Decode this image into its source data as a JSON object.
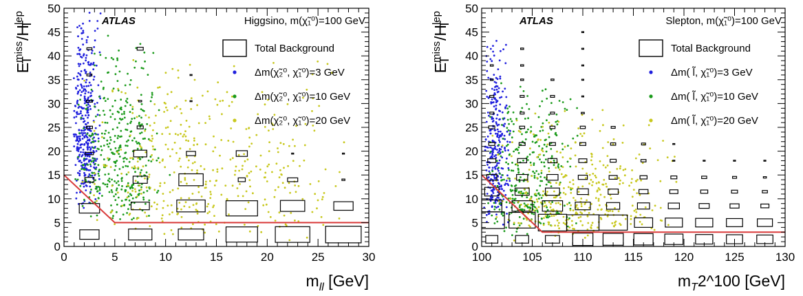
{
  "chart_data": [
    {
      "type": "scatter",
      "experiment_label": "ATLAS",
      "annotation": "Higgsino, m(χ̃₁⁰)=100 GeV",
      "xlabel": "m_ll [GeV]",
      "ylabel": "E_T^miss/H_T^lep",
      "xlim": [
        0,
        30
      ],
      "ylim": [
        0,
        50
      ],
      "x_ticks": [
        0,
        5,
        10,
        15,
        20,
        25,
        30
      ],
      "y_ticks": [
        0,
        5,
        10,
        15,
        20,
        25,
        30,
        35,
        40,
        45,
        50
      ],
      "grid": false,
      "legend_position": "top-right",
      "legend": [
        {
          "label": "Total Background",
          "kind": "box"
        },
        {
          "label": "Δm(χ̃₂⁰, χ̃₁⁰)=3 GeV",
          "kind": "marker",
          "color": "#1f1fdd"
        },
        {
          "label": "Δm(χ̃₂⁰, χ̃₁⁰)=10 GeV",
          "kind": "marker",
          "color": "#1a9a1a"
        },
        {
          "label": "Δm(χ̃₂⁰, χ̃₁⁰)=20 GeV",
          "kind": "marker",
          "color": "#c8c81e"
        }
      ],
      "selection_line": {
        "color": "#d93a3a",
        "x": [
          0,
          5,
          30
        ],
        "y": [
          15,
          5,
          5
        ]
      },
      "background_boxes": [
        {
          "x": 2.5,
          "y": 2.5,
          "w": 1.9,
          "h": 2.0
        },
        {
          "x": 2.5,
          "y": 8.0,
          "w": 2.0,
          "h": 2.0
        },
        {
          "x": 2.5,
          "y": 14.0,
          "w": 0.9,
          "h": 1.0
        },
        {
          "x": 2.5,
          "y": 19.5,
          "w": 0.8,
          "h": 0.5
        },
        {
          "x": 2.5,
          "y": 25.0,
          "w": 0.6,
          "h": 0.5
        },
        {
          "x": 2.5,
          "y": 30.5,
          "w": 0.6,
          "h": 0.4
        },
        {
          "x": 2.5,
          "y": 36.0,
          "w": 0.5,
          "h": 0.4
        },
        {
          "x": 2.5,
          "y": 41.5,
          "w": 0.5,
          "h": 0.4
        },
        {
          "x": 7.5,
          "y": 2.5,
          "w": 2.3,
          "h": 2.3
        },
        {
          "x": 7.5,
          "y": 8.5,
          "w": 1.8,
          "h": 1.6
        },
        {
          "x": 7.5,
          "y": 14.0,
          "w": 1.4,
          "h": 1.5
        },
        {
          "x": 7.5,
          "y": 19.5,
          "w": 1.3,
          "h": 1.4
        },
        {
          "x": 7.5,
          "y": 25.0,
          "w": 0.6,
          "h": 0.6
        },
        {
          "x": 7.5,
          "y": 30.5,
          "w": 0.3,
          "h": 0.3
        },
        {
          "x": 7.5,
          "y": 41.5,
          "w": 0.6,
          "h": 0.6
        },
        {
          "x": 12.5,
          "y": 2.5,
          "w": 2.5,
          "h": 2.3
        },
        {
          "x": 12.5,
          "y": 8.5,
          "w": 2.8,
          "h": 2.5
        },
        {
          "x": 12.5,
          "y": 14.0,
          "w": 2.4,
          "h": 2.5
        },
        {
          "x": 12.5,
          "y": 19.5,
          "w": 0.9,
          "h": 0.9
        },
        {
          "x": 12.5,
          "y": 30.5,
          "w": 0.2,
          "h": 0.2
        },
        {
          "x": 12.5,
          "y": 36.0,
          "w": 0.2,
          "h": 0.2
        },
        {
          "x": 17.5,
          "y": 2.5,
          "w": 3.1,
          "h": 3.2
        },
        {
          "x": 17.5,
          "y": 8.0,
          "w": 3.1,
          "h": 3.2
        },
        {
          "x": 17.5,
          "y": 14.0,
          "w": 0.7,
          "h": 0.8
        },
        {
          "x": 17.5,
          "y": 19.5,
          "w": 1.1,
          "h": 1.2
        },
        {
          "x": 22.5,
          "y": 2.5,
          "w": 3.4,
          "h": 3.3
        },
        {
          "x": 22.5,
          "y": 8.5,
          "w": 2.4,
          "h": 2.3
        },
        {
          "x": 22.5,
          "y": 14.0,
          "w": 1.0,
          "h": 0.8
        },
        {
          "x": 22.5,
          "y": 19.5,
          "w": 0.2,
          "h": 0.2
        },
        {
          "x": 27.5,
          "y": 2.5,
          "w": 3.5,
          "h": 3.5
        },
        {
          "x": 27.5,
          "y": 8.5,
          "w": 1.9,
          "h": 1.8
        },
        {
          "x": 27.5,
          "y": 14.0,
          "w": 0.3,
          "h": 0.3
        },
        {
          "x": 27.5,
          "y": 19.5,
          "w": 0.2,
          "h": 0.2
        }
      ],
      "series": [
        {
          "name": "Δm(χ̃₂⁰, χ̃₁⁰)=3 GeV",
          "color": "#1f1fdd",
          "count": 380,
          "x_range": [
            0.9,
            3.6
          ],
          "x_peak": 1.9,
          "y_range": [
            8,
            50
          ],
          "y_peak": 19
        },
        {
          "name": "Δm(χ̃₂⁰, χ̃₁⁰)=10 GeV",
          "color": "#1a9a1a",
          "count": 380,
          "x_range": [
            1.0,
            10.5
          ],
          "x_peak": 5.0,
          "y_range": [
            5,
            45
          ],
          "y_peak": 12
        },
        {
          "name": "Δm(χ̃₂⁰, χ̃₁⁰)=20 GeV",
          "color": "#c8c81e",
          "count": 420,
          "x_range": [
            1.5,
            29.5
          ],
          "x_peak": 11.0,
          "y_range": [
            1,
            42
          ],
          "y_peak": 8
        }
      ]
    },
    {
      "type": "scatter",
      "experiment_label": "ATLAS",
      "annotation": "Slepton, m(χ̃₁⁰)=100 GeV",
      "xlabel": "m_T2^100 [GeV]",
      "ylabel": "E_T^miss/H_T^lep",
      "xlim": [
        100,
        130
      ],
      "ylim": [
        0,
        50
      ],
      "x_ticks": [
        100,
        105,
        110,
        115,
        120,
        125,
        130
      ],
      "y_ticks": [
        0,
        5,
        10,
        15,
        20,
        25,
        30,
        35,
        40,
        45,
        50
      ],
      "grid": false,
      "legend_position": "top-right",
      "legend": [
        {
          "label": "Total Background",
          "kind": "box"
        },
        {
          "label": "Δm( l̃, χ̃₁⁰)=3 GeV",
          "kind": "marker",
          "color": "#1f1fdd"
        },
        {
          "label": "Δm( l̃, χ̃₁⁰)=10 GeV",
          "kind": "marker",
          "color": "#1a9a1a"
        },
        {
          "label": "Δm( l̃, χ̃₁⁰)=20 GeV",
          "kind": "marker",
          "color": "#c8c81e"
        }
      ],
      "selection_line": {
        "color": "#d93a3a",
        "x": [
          100,
          106,
          130
        ],
        "y": [
          15,
          3,
          3
        ]
      },
      "background_boxes": [
        {
          "x": 101,
          "y": 1.5,
          "w": 1.2,
          "h": 1.6
        },
        {
          "x": 101,
          "y": 5.5,
          "w": 2.5,
          "h": 3.5
        },
        {
          "x": 101,
          "y": 8.5,
          "w": 2.0,
          "h": 2.5
        },
        {
          "x": 101,
          "y": 11.5,
          "w": 1.4,
          "h": 1.8
        },
        {
          "x": 101,
          "y": 14.5,
          "w": 1.0,
          "h": 1.2
        },
        {
          "x": 101,
          "y": 18.0,
          "w": 0.8,
          "h": 0.8
        },
        {
          "x": 101,
          "y": 21.5,
          "w": 0.6,
          "h": 0.6
        },
        {
          "x": 101,
          "y": 25.0,
          "w": 0.6,
          "h": 0.6
        },
        {
          "x": 101,
          "y": 28.0,
          "w": 0.4,
          "h": 0.4
        },
        {
          "x": 101,
          "y": 31.5,
          "w": 0.4,
          "h": 0.4
        },
        {
          "x": 101,
          "y": 35.0,
          "w": 0.3,
          "h": 0.3
        },
        {
          "x": 101,
          "y": 38.0,
          "w": 0.3,
          "h": 0.3
        },
        {
          "x": 104,
          "y": 1.5,
          "w": 1.3,
          "h": 1.6
        },
        {
          "x": 104,
          "y": 5.5,
          "w": 2.6,
          "h": 3.3
        },
        {
          "x": 104,
          "y": 8.5,
          "w": 2.0,
          "h": 2.2
        },
        {
          "x": 104,
          "y": 11.5,
          "w": 1.4,
          "h": 1.5
        },
        {
          "x": 104,
          "y": 14.5,
          "w": 1.1,
          "h": 1.2
        },
        {
          "x": 104,
          "y": 18.0,
          "w": 0.9,
          "h": 0.9
        },
        {
          "x": 104,
          "y": 21.5,
          "w": 0.6,
          "h": 0.6
        },
        {
          "x": 104,
          "y": 25.0,
          "w": 0.5,
          "h": 0.5
        },
        {
          "x": 104,
          "y": 28.0,
          "w": 0.4,
          "h": 0.4
        },
        {
          "x": 104,
          "y": 31.5,
          "w": 0.4,
          "h": 0.4
        },
        {
          "x": 104,
          "y": 35.0,
          "w": 0.3,
          "h": 0.3
        },
        {
          "x": 104,
          "y": 38.0,
          "w": 0.3,
          "h": 0.3
        },
        {
          "x": 104,
          "y": 41.5,
          "w": 0.3,
          "h": 0.3
        },
        {
          "x": 107,
          "y": 1.5,
          "w": 1.4,
          "h": 1.6
        },
        {
          "x": 107,
          "y": 5.0,
          "w": 2.8,
          "h": 3.5
        },
        {
          "x": 107,
          "y": 8.5,
          "w": 2.0,
          "h": 2.2
        },
        {
          "x": 107,
          "y": 11.5,
          "w": 1.4,
          "h": 1.5
        },
        {
          "x": 107,
          "y": 14.5,
          "w": 1.1,
          "h": 1.2
        },
        {
          "x": 107,
          "y": 18.0,
          "w": 0.9,
          "h": 0.9
        },
        {
          "x": 107,
          "y": 21.5,
          "w": 0.6,
          "h": 0.6
        },
        {
          "x": 107,
          "y": 25.0,
          "w": 0.5,
          "h": 0.5
        },
        {
          "x": 107,
          "y": 28.0,
          "w": 0.4,
          "h": 0.4
        },
        {
          "x": 107,
          "y": 31.5,
          "w": 0.4,
          "h": 0.4
        },
        {
          "x": 107,
          "y": 35.0,
          "w": 0.3,
          "h": 0.3
        },
        {
          "x": 110,
          "y": 1.5,
          "w": 2.0,
          "h": 2.6
        },
        {
          "x": 110,
          "y": 5.0,
          "w": 3.2,
          "h": 3.3
        },
        {
          "x": 110,
          "y": 8.5,
          "w": 1.5,
          "h": 1.6
        },
        {
          "x": 110,
          "y": 11.5,
          "w": 1.1,
          "h": 1.2
        },
        {
          "x": 110,
          "y": 14.5,
          "w": 0.9,
          "h": 0.9
        },
        {
          "x": 110,
          "y": 18.0,
          "w": 0.8,
          "h": 0.8
        },
        {
          "x": 110,
          "y": 21.5,
          "w": 0.6,
          "h": 0.6
        },
        {
          "x": 110,
          "y": 25.0,
          "w": 0.5,
          "h": 0.5
        },
        {
          "x": 110,
          "y": 28.0,
          "w": 0.3,
          "h": 0.3
        },
        {
          "x": 110,
          "y": 31.5,
          "w": 0.2,
          "h": 0.2
        },
        {
          "x": 110,
          "y": 35.0,
          "w": 0.2,
          "h": 0.2
        },
        {
          "x": 110,
          "y": 38.0,
          "w": 0.2,
          "h": 0.2
        },
        {
          "x": 110,
          "y": 41.5,
          "w": 0.2,
          "h": 0.2
        },
        {
          "x": 110,
          "y": 45.0,
          "w": 0.2,
          "h": 0.2
        },
        {
          "x": 113,
          "y": 1.5,
          "w": 2.0,
          "h": 2.5
        },
        {
          "x": 113,
          "y": 5.0,
          "w": 2.8,
          "h": 3.2
        },
        {
          "x": 113,
          "y": 8.5,
          "w": 1.3,
          "h": 1.4
        },
        {
          "x": 113,
          "y": 11.5,
          "w": 1.0,
          "h": 1.1
        },
        {
          "x": 113,
          "y": 14.5,
          "w": 0.8,
          "h": 0.8
        },
        {
          "x": 113,
          "y": 18.0,
          "w": 0.6,
          "h": 0.6
        },
        {
          "x": 113,
          "y": 21.5,
          "w": 0.5,
          "h": 0.5
        },
        {
          "x": 113,
          "y": 25.0,
          "w": 0.4,
          "h": 0.4
        },
        {
          "x": 116,
          "y": 1.5,
          "w": 1.9,
          "h": 2.4
        },
        {
          "x": 116,
          "y": 5.0,
          "w": 1.8,
          "h": 2.0
        },
        {
          "x": 116,
          "y": 8.5,
          "w": 1.2,
          "h": 1.3
        },
        {
          "x": 116,
          "y": 11.5,
          "w": 0.9,
          "h": 0.9
        },
        {
          "x": 116,
          "y": 14.5,
          "w": 0.7,
          "h": 0.7
        },
        {
          "x": 116,
          "y": 18.0,
          "w": 0.5,
          "h": 0.5
        },
        {
          "x": 116,
          "y": 21.5,
          "w": 0.4,
          "h": 0.4
        },
        {
          "x": 119,
          "y": 1.5,
          "w": 1.8,
          "h": 2.2
        },
        {
          "x": 119,
          "y": 5.0,
          "w": 1.7,
          "h": 1.9
        },
        {
          "x": 119,
          "y": 8.5,
          "w": 1.1,
          "h": 1.2
        },
        {
          "x": 119,
          "y": 11.5,
          "w": 0.8,
          "h": 0.8
        },
        {
          "x": 119,
          "y": 14.5,
          "w": 0.6,
          "h": 0.6
        },
        {
          "x": 119,
          "y": 18.0,
          "w": 0.2,
          "h": 0.2
        },
        {
          "x": 119,
          "y": 21.5,
          "w": 0.2,
          "h": 0.2
        },
        {
          "x": 122,
          "y": 1.5,
          "w": 1.7,
          "h": 2.0
        },
        {
          "x": 122,
          "y": 5.0,
          "w": 1.7,
          "h": 1.8
        },
        {
          "x": 122,
          "y": 8.5,
          "w": 1.0,
          "h": 1.0
        },
        {
          "x": 122,
          "y": 11.5,
          "w": 0.7,
          "h": 0.7
        },
        {
          "x": 122,
          "y": 14.5,
          "w": 0.5,
          "h": 0.5
        },
        {
          "x": 122,
          "y": 18.0,
          "w": 0.2,
          "h": 0.2
        },
        {
          "x": 125,
          "y": 1.5,
          "w": 1.6,
          "h": 1.9
        },
        {
          "x": 125,
          "y": 5.0,
          "w": 1.6,
          "h": 1.7
        },
        {
          "x": 125,
          "y": 8.5,
          "w": 0.9,
          "h": 0.9
        },
        {
          "x": 125,
          "y": 11.5,
          "w": 0.6,
          "h": 0.6
        },
        {
          "x": 125,
          "y": 14.5,
          "w": 0.4,
          "h": 0.4
        },
        {
          "x": 125,
          "y": 18.0,
          "w": 0.2,
          "h": 0.2
        },
        {
          "x": 128,
          "y": 1.5,
          "w": 1.6,
          "h": 1.8
        },
        {
          "x": 128,
          "y": 5.0,
          "w": 1.5,
          "h": 1.6
        },
        {
          "x": 128,
          "y": 8.5,
          "w": 0.8,
          "h": 0.8
        },
        {
          "x": 128,
          "y": 11.5,
          "w": 0.5,
          "h": 0.5
        },
        {
          "x": 128,
          "y": 14.5,
          "w": 0.3,
          "h": 0.3
        },
        {
          "x": 128,
          "y": 18.0,
          "w": 0.2,
          "h": 0.2
        }
      ],
      "series": [
        {
          "name": "Δm( l̃, χ̃₁⁰)=3 GeV",
          "color": "#1f1fdd",
          "count": 300,
          "x_range": [
            100.2,
            103.0
          ],
          "x_peak": 101.3,
          "y_range": [
            4,
            47
          ],
          "y_peak": 13
        },
        {
          "name": "Δm( l̃, χ̃₁⁰)=10 GeV",
          "color": "#1a9a1a",
          "count": 340,
          "x_range": [
            100.3,
            110.0
          ],
          "x_peak": 104.0,
          "y_range": [
            2,
            35
          ],
          "y_peak": 8
        },
        {
          "name": "Δm( l̃, χ̃₁⁰)=20 GeV",
          "color": "#c8c81e",
          "count": 380,
          "x_range": [
            100.5,
            119.5
          ],
          "x_peak": 108.0,
          "y_range": [
            1,
            30
          ],
          "y_peak": 5
        }
      ]
    }
  ]
}
